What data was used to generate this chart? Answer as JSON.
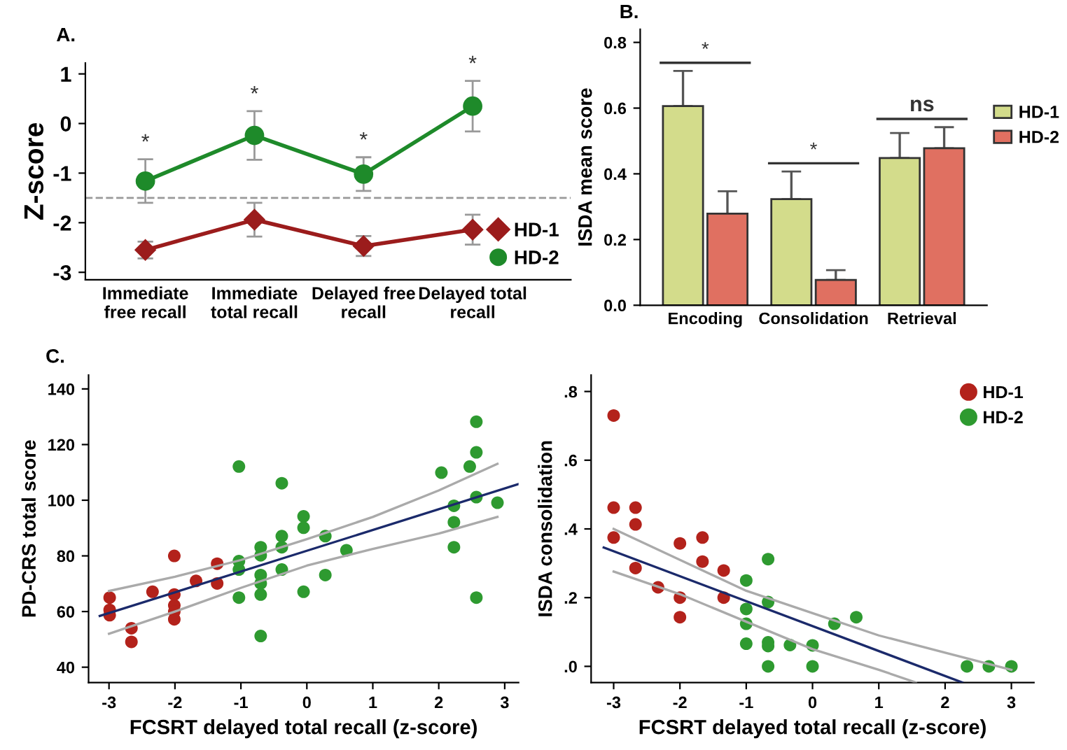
{
  "chart_data": [
    {
      "type": "line",
      "title": "A.",
      "ylabel": "Z-score",
      "categories": [
        "Immediate\nfree recall",
        "Immediate\ntotal recall",
        "Delayed free\nrecall",
        "Delayed total\nrecall"
      ],
      "series": [
        {
          "name": "HD-1",
          "color": "#9b1c1c",
          "marker": "diamond",
          "values": [
            -2.55,
            -1.94,
            -2.47,
            -2.14
          ],
          "errors": [
            0.17,
            0.34,
            0.2,
            0.3
          ]
        },
        {
          "name": "HD-2",
          "color": "#1e8a2a",
          "marker": "circle",
          "values": [
            -1.16,
            -0.24,
            -1.02,
            0.35
          ],
          "errors": [
            0.44,
            0.49,
            0.34,
            0.51
          ]
        }
      ],
      "ylim": [
        -3.15,
        1.22
      ],
      "yticks": [
        -3,
        -2,
        -1,
        0,
        1
      ],
      "ref_lines": [
        {
          "axis": "y",
          "value": -1.5,
          "color": "#999999",
          "line_style": "dashed"
        }
      ],
      "annotations": [
        "*",
        "*",
        "*",
        "*"
      ],
      "legend": "bottom right",
      "grid": false
    },
    {
      "type": "bar",
      "title": "B.",
      "ylabel": "ISDA mean score",
      "categories": [
        "Encoding",
        "Consolidation",
        "Retrieval"
      ],
      "series": [
        {
          "name": "HD-1",
          "color": "#d3dc8b",
          "values": [
            0.606,
            0.323,
            0.448
          ],
          "errors": [
            [
              0.606,
              0.713
            ],
            [
              0.323,
              0.407
            ],
            [
              0.448,
              0.524
            ]
          ]
        },
        {
          "name": "HD-2",
          "color": "#e07061",
          "values": [
            0.279,
            0.077,
            0.478
          ],
          "errors": [
            [
              0.279,
              0.347
            ],
            [
              0.077,
              0.107
            ],
            [
              0.478,
              0.542
            ]
          ]
        }
      ],
      "ylim": [
        0,
        0.84
      ],
      "yticks": [
        {
          "value": 0,
          "label": "0.0"
        },
        {
          "value": 0.2,
          "label": "0.2"
        },
        {
          "value": 0.4,
          "label": "0.4"
        },
        {
          "value": 0.6,
          "label": "0.6"
        },
        {
          "value": 0.8,
          "label": "0.8"
        }
      ],
      "annotations": [
        "*",
        "*",
        "ns"
      ],
      "legend": "right",
      "grid": false
    },
    {
      "type": "scatter",
      "title": "C.",
      "xlabel": "FCSRT delayed total recall (z-score)",
      "ylabel": "PD-CRS total score",
      "marker": "circle",
      "series": [
        {
          "color": "#b3221b",
          "x": [
            -2.99,
            -2.99,
            -2.99,
            -2.66,
            -2.66,
            -2.34,
            -2.01,
            -2.01,
            -2.01,
            -2.01,
            -2.01,
            -1.68,
            -1.36,
            -1.36
          ],
          "values": [
            65.0,
            60.6,
            58.7,
            54.0,
            49.1,
            67.1,
            80.0,
            66.1,
            62.2,
            60.0,
            57.2,
            71.0,
            77.2,
            70.1
          ]
        },
        {
          "color": "#2e9a30",
          "x": [
            -1.03,
            -1.03,
            -1.03,
            -1.03,
            -0.7,
            -0.7,
            -0.7,
            -0.7,
            -0.7,
            -0.7,
            -0.38,
            -0.38,
            -0.38,
            -0.38,
            -0.05,
            -0.05,
            -0.05,
            0.28,
            0.28,
            0.6,
            2.04,
            2.23,
            2.23,
            2.23,
            2.47,
            2.57,
            2.57,
            2.57,
            2.57,
            2.89
          ],
          "values": [
            112.1,
            78.1,
            75.1,
            65.0,
            83.1,
            80.2,
            73.1,
            70.1,
            66.1,
            51.2,
            106.1,
            87.1,
            83.1,
            75.1,
            94.2,
            90.1,
            67.1,
            87.1,
            73.1,
            82.0,
            109.9,
            98.0,
            92.1,
            83.1,
            112.1,
            128.2,
            117.2,
            101.1,
            65.0,
            99.1
          ]
        },
        {
          "type": "line",
          "color": "#aaaaaa",
          "marker": "none",
          "x": [
            -3,
            -2,
            -1,
            0,
            1,
            2,
            2.89
          ],
          "values": [
            67.4,
            72.5,
            78.5,
            86,
            94,
            103.5,
            113.1
          ]
        },
        {
          "type": "line",
          "color": "#aaaaaa",
          "marker": "none",
          "x": [
            -3,
            -2,
            -1,
            0,
            1,
            2,
            2.89
          ],
          "values": [
            52,
            60,
            68.5,
            76.5,
            82.5,
            88,
            94
          ]
        },
        {
          "type": "line",
          "color": "#1b2a6b",
          "marker": "none",
          "x": [
            -3.14,
            3.21
          ],
          "values": [
            58.4,
            105.8
          ]
        }
      ],
      "xlim": [
        -3.31,
        3.21
      ],
      "xticks": [
        -3,
        -2,
        -1,
        0,
        1,
        2,
        3
      ],
      "ylim": [
        34.5,
        145
      ],
      "yticks": [
        40,
        60,
        80,
        100,
        120,
        140
      ],
      "grid": false
    },
    {
      "type": "scatter",
      "xlabel": "FCSRT delayed total recall (z-score)",
      "ylabel": "ISDA consolidation",
      "marker": "circle",
      "series": [
        {
          "name": "HD-1",
          "color": "#b3221b",
          "x": [
            -3,
            -3,
            -3,
            -2.67,
            -2.67,
            -2.67,
            -2.33,
            -2.0,
            -2.0,
            -2.0,
            -1.66,
            -1.66,
            -1.34,
            -1.34
          ],
          "values": [
            0.73,
            0.462,
            0.375,
            0.462,
            0.413,
            0.286,
            0.23,
            0.358,
            0.2,
            0.143,
            0.375,
            0.305,
            0.279,
            0.2
          ]
        },
        {
          "name": "HD-2",
          "color": "#2e9a30",
          "x": [
            -1.0,
            -1.0,
            -1.0,
            -1.0,
            -0.67,
            -0.67,
            -0.67,
            -0.67,
            -0.67,
            -0.34,
            0,
            0,
            0.33,
            0.66,
            2.33,
            2.66,
            3
          ],
          "values": [
            0.25,
            0.167,
            0.124,
            0.066,
            0.312,
            0.187,
            0.07,
            0.059,
            0.0,
            0.062,
            0.061,
            0.0,
            0.124,
            0.143,
            0.0,
            0.0,
            0.0
          ]
        },
        {
          "type": "line",
          "color": "#aaaaaa",
          "marker": "none",
          "x": [
            -3,
            -2,
            -1,
            0,
            1,
            2,
            3
          ],
          "values": [
            0.4,
            0.31,
            0.22,
            0.155,
            0.09,
            0.04,
            -0.01
          ]
        },
        {
          "type": "line",
          "color": "#aaaaaa",
          "marker": "none",
          "x": [
            -3,
            -2,
            -1,
            0,
            1,
            1.56
          ],
          "values": [
            0.276,
            0.21,
            0.13,
            0.05,
            -0.01,
            -0.047
          ]
        },
        {
          "type": "line",
          "color": "#1b2a6b",
          "marker": "none",
          "x": [
            -3.15,
            2.26
          ],
          "values": [
            0.346,
            -0.047
          ]
        }
      ],
      "xlim": [
        -3.34,
        3.34
      ],
      "xticks": [
        -3,
        -2,
        -1,
        0,
        1,
        2,
        3
      ],
      "ylim": [
        -0.047,
        0.848
      ],
      "yticks": [
        {
          "value": 0,
          "label": ".0"
        },
        {
          "value": 0.2,
          "label": ".2"
        },
        {
          "value": 0.4,
          "label": ".4"
        },
        {
          "value": 0.6,
          "label": ".6"
        },
        {
          "value": 0.8,
          "label": ".8"
        }
      ],
      "legend": "top right",
      "grid": false
    }
  ]
}
